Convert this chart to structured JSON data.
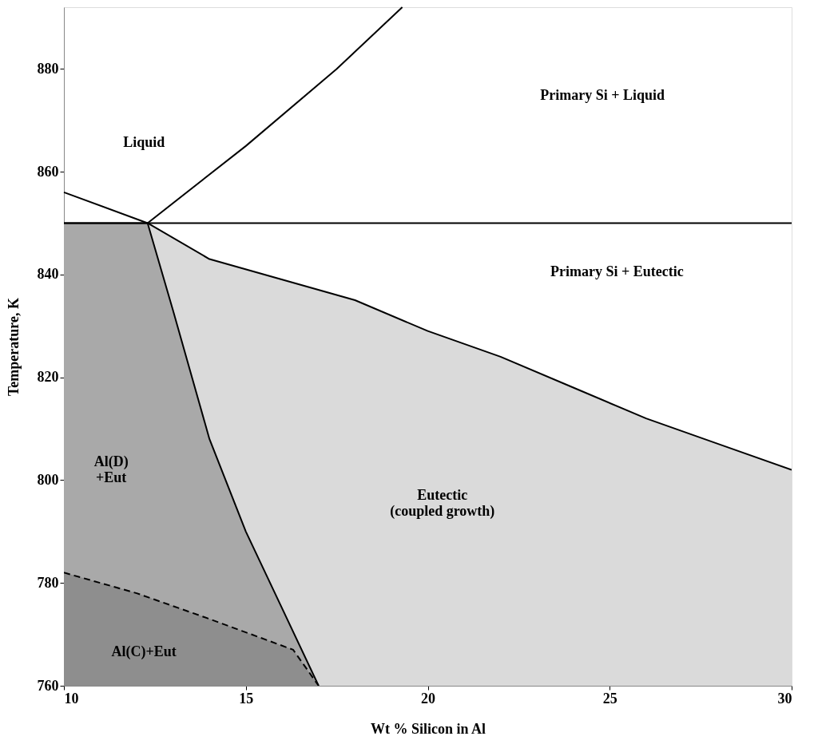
{
  "chart_data": {
    "type": "line",
    "xlabel": "Wt % Silicon in Al",
    "ylabel": "Temperature, K",
    "xlim": [
      10,
      30
    ],
    "ylim": [
      760,
      892
    ],
    "xticks": [
      10,
      15,
      20,
      25,
      30
    ],
    "yticks": [
      760,
      780,
      800,
      820,
      840,
      860,
      880
    ],
    "grid": false,
    "series": [
      {
        "type": "area",
        "color": "#dadada",
        "line_style": "solid",
        "x": [
          12.3,
          14,
          16,
          18,
          20,
          22,
          24,
          26,
          28,
          30
        ],
        "values": [
          850,
          843,
          839,
          835,
          829,
          824,
          818,
          812,
          807,
          802
        ]
      },
      {
        "type": "area",
        "color": "#a9a9a9",
        "line_style": "solid",
        "x": [
          10,
          12.3,
          13,
          14,
          15,
          16,
          17
        ],
        "values": [
          850,
          850,
          833,
          808,
          790,
          775,
          760
        ]
      },
      {
        "type": "area",
        "color": "#8e8e8e",
        "line_style": "dashed",
        "x": [
          10,
          12,
          14,
          16.3,
          17
        ],
        "values": [
          782,
          778,
          773,
          767,
          760
        ]
      },
      {
        "color": "#000000",
        "x": [
          10,
          12.3,
          15,
          17.5,
          19.3
        ],
        "values": [
          856,
          850,
          865,
          880,
          892
        ]
      }
    ],
    "ref_lines": [
      {
        "axis": "y",
        "value": 850,
        "color": "#000000"
      }
    ],
    "annotations": [
      "Liquid",
      "Primary Si + Liquid",
      "Primary Si + Eutectic",
      "Al(D)\n+Eut",
      "Eutectic\n(coupled growth)",
      "Al(C)+Eut"
    ]
  }
}
